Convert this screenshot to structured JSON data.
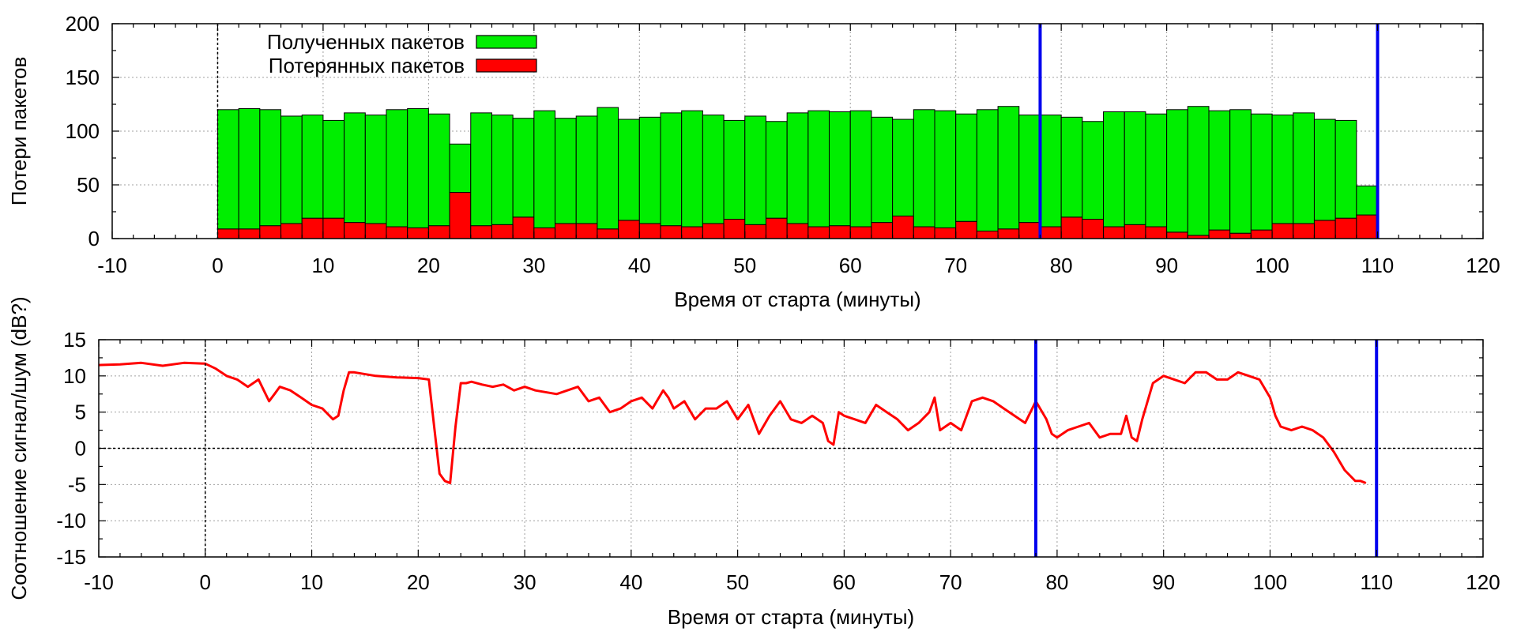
{
  "chart_data": [
    {
      "type": "bar",
      "stacked": true,
      "ylabel": "Потери пакетов",
      "xlabel": "Время от старта (минуты)",
      "xlim": [
        -10,
        120
      ],
      "ylim": [
        0,
        200
      ],
      "xticks": [
        -10,
        0,
        10,
        20,
        30,
        40,
        50,
        60,
        70,
        80,
        90,
        100,
        110,
        120
      ],
      "yticks": [
        0,
        50,
        100,
        150,
        200
      ],
      "grid": true,
      "legend_position": "top-left",
      "bar_width": 2,
      "x": [
        1,
        3,
        5,
        7,
        9,
        11,
        13,
        15,
        17,
        19,
        21,
        23,
        25,
        27,
        29,
        31,
        33,
        35,
        37,
        39,
        41,
        43,
        45,
        47,
        49,
        51,
        53,
        55,
        57,
        59,
        61,
        63,
        65,
        67,
        69,
        71,
        73,
        75,
        77,
        79,
        81,
        83,
        85,
        87,
        89,
        91,
        93,
        95,
        97,
        99,
        101,
        103,
        105,
        107,
        109
      ],
      "series": [
        {
          "name": "Потерянных пакетов",
          "color": "#ff0000",
          "values": [
            9,
            9,
            12,
            14,
            19,
            19,
            15,
            14,
            11,
            10,
            12,
            43,
            12,
            13,
            20,
            10,
            14,
            14,
            9,
            17,
            14,
            12,
            11,
            14,
            18,
            13,
            19,
            14,
            11,
            12,
            11,
            15,
            21,
            11,
            10,
            16,
            7,
            9,
            15,
            11,
            20,
            18,
            11,
            13,
            11,
            6,
            3,
            8,
            5,
            8,
            14,
            14,
            17,
            19,
            22
          ]
        },
        {
          "name": "Полученных пакетов",
          "color": "#00ee00",
          "values": [
            111,
            112,
            108,
            100,
            96,
            91,
            102,
            101,
            109,
            111,
            104,
            45,
            105,
            102,
            92,
            109,
            98,
            100,
            113,
            94,
            99,
            105,
            108,
            101,
            92,
            101,
            90,
            103,
            108,
            106,
            108,
            98,
            90,
            109,
            109,
            100,
            113,
            114,
            100,
            104,
            93,
            91,
            107,
            105,
            105,
            114,
            120,
            111,
            115,
            108,
            101,
            103,
            94,
            91,
            27
          ]
        }
      ],
      "reference_lines": [
        {
          "x": 0,
          "orientation": "vertical",
          "style": "dotted",
          "color": "#000000"
        },
        {
          "x": 78,
          "orientation": "vertical",
          "style": "solid",
          "color": "#0000ee"
        },
        {
          "x": 110,
          "orientation": "vertical",
          "style": "solid",
          "color": "#0000ee"
        }
      ]
    },
    {
      "type": "line",
      "ylabel": "Соотношение сигнал/шум (dB?)",
      "xlabel": "Время от старта (минуты)",
      "xlim": [
        -10,
        120
      ],
      "ylim": [
        -15,
        15
      ],
      "xticks": [
        -10,
        0,
        10,
        20,
        30,
        40,
        50,
        60,
        70,
        80,
        90,
        100,
        110,
        120
      ],
      "yticks": [
        -15,
        -10,
        -5,
        0,
        5,
        10,
        15
      ],
      "grid": true,
      "series": [
        {
          "color": "#ff0000",
          "x": [
            -10,
            -8,
            -6,
            -4,
            -2,
            0,
            1,
            2,
            3,
            4,
            5,
            5.5,
            6,
            6.5,
            7,
            8,
            9,
            10,
            11,
            12,
            12.5,
            13,
            13.5,
            14,
            16,
            18,
            20,
            21,
            21.5,
            22,
            22.5,
            23,
            23.5,
            24,
            24.5,
            25,
            26,
            27,
            28,
            29,
            30,
            31,
            33,
            35,
            36,
            37,
            38,
            39,
            40,
            41,
            42,
            43,
            43.5,
            44,
            45,
            46,
            47,
            48,
            49,
            50,
            51,
            52,
            53,
            54,
            55,
            56,
            57,
            58,
            58.5,
            59,
            59.5,
            60,
            61,
            62,
            63,
            64,
            65,
            66,
            67,
            68,
            68.5,
            69,
            70,
            71,
            72,
            73,
            74,
            75,
            76,
            77,
            78,
            79,
            79.5,
            80,
            81,
            82,
            83,
            84,
            85,
            86,
            86.5,
            87,
            87.5,
            88,
            89,
            90,
            91,
            92,
            93,
            94,
            95,
            96,
            97,
            98,
            99,
            100,
            100.5,
            101,
            102,
            103,
            104,
            105,
            106,
            107,
            108,
            108.5,
            109
          ],
          "values": [
            11.5,
            11.6,
            11.8,
            11.4,
            11.8,
            11.7,
            11.0,
            10.0,
            9.5,
            8.5,
            9.5,
            8.0,
            6.5,
            7.5,
            8.5,
            8.0,
            7.0,
            6.0,
            5.5,
            4.0,
            4.5,
            8.0,
            10.5,
            10.5,
            10.0,
            9.8,
            9.7,
            9.5,
            3.0,
            -3.5,
            -4.5,
            -4.8,
            3.0,
            9.0,
            9.0,
            9.2,
            8.8,
            8.5,
            8.8,
            8.0,
            8.5,
            8.0,
            7.5,
            8.5,
            6.5,
            7.0,
            5.0,
            5.5,
            6.5,
            7.0,
            5.5,
            8.0,
            7.0,
            5.5,
            6.5,
            4.0,
            5.5,
            5.5,
            6.5,
            4.0,
            6.0,
            2.0,
            4.5,
            6.5,
            4.0,
            3.5,
            4.5,
            3.5,
            1.0,
            0.5,
            5.0,
            4.5,
            4.0,
            3.5,
            6.0,
            5.0,
            4.0,
            2.5,
            3.5,
            5.0,
            7.0,
            2.5,
            3.5,
            2.5,
            6.5,
            7.0,
            6.5,
            5.5,
            4.5,
            3.5,
            6.5,
            4.0,
            2.0,
            1.5,
            2.5,
            3.0,
            3.5,
            1.5,
            2.0,
            2.0,
            4.5,
            1.5,
            1.0,
            4.0,
            9.0,
            10.0,
            9.5,
            9.0,
            10.5,
            10.5,
            9.5,
            9.5,
            10.5,
            10.0,
            9.5,
            7.0,
            4.5,
            3.0,
            2.5,
            3.0,
            2.5,
            1.5,
            -0.5,
            -3.0,
            -4.5,
            -4.5,
            -4.8
          ]
        }
      ],
      "reference_lines": [
        {
          "x": 0,
          "orientation": "vertical",
          "style": "dotted",
          "color": "#000000"
        },
        {
          "y": 0,
          "orientation": "horizontal",
          "style": "dotted",
          "color": "#000000"
        },
        {
          "x": 78,
          "orientation": "vertical",
          "style": "solid",
          "color": "#0000ee"
        },
        {
          "x": 110,
          "orientation": "vertical",
          "style": "solid",
          "color": "#0000ee"
        }
      ]
    }
  ]
}
